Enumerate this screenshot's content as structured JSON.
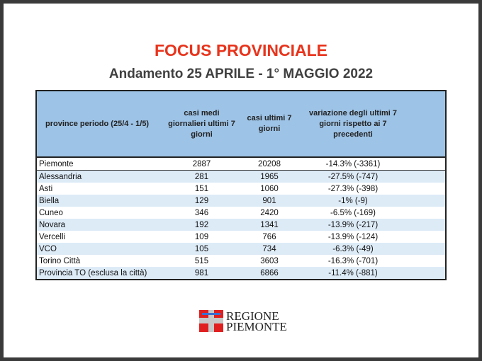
{
  "title": "FOCUS PROVINCIALE",
  "subtitle": "Andamento 25 APRILE - 1° MAGGIO 2022",
  "table": {
    "headers": [
      "province periodo (25/4 - 1/5)",
      "casi medi giornalieri ultimi 7 giorni",
      "casi ultimi 7 giorni",
      "variazione degli ultimi 7 giorni rispetto ai 7 precedenti"
    ],
    "rows": [
      [
        "Piemonte",
        "2887",
        "20208",
        "-14.3% (-3361)"
      ],
      [
        "Alessandria",
        "281",
        "1965",
        "-27.5% (-747)"
      ],
      [
        "Asti",
        "151",
        "1060",
        "-27.3% (-398)"
      ],
      [
        "Biella",
        "129",
        "901",
        "-1% (-9)"
      ],
      [
        "Cuneo",
        "346",
        "2420",
        "-6.5% (-169)"
      ],
      [
        "Novara",
        "192",
        "1341",
        "-13.9% (-217)"
      ],
      [
        "Vercelli",
        "109",
        "766",
        "-13.9% (-124)"
      ],
      [
        "VCO",
        "105",
        "734",
        "-6.3% (-49)"
      ],
      [
        "Torino Città",
        "515",
        "3603",
        "-16.3% (-701)"
      ],
      [
        "Provincia TO (esclusa la città)",
        "981",
        "6866",
        "-11.4% (-881)"
      ]
    ]
  },
  "logo": {
    "line1": "REGIONE",
    "line2": "PIEMONTE"
  },
  "colors": {
    "title": "#e8341c",
    "header_bg": "#9dc3e6",
    "row_shade": "#ddebf7"
  }
}
